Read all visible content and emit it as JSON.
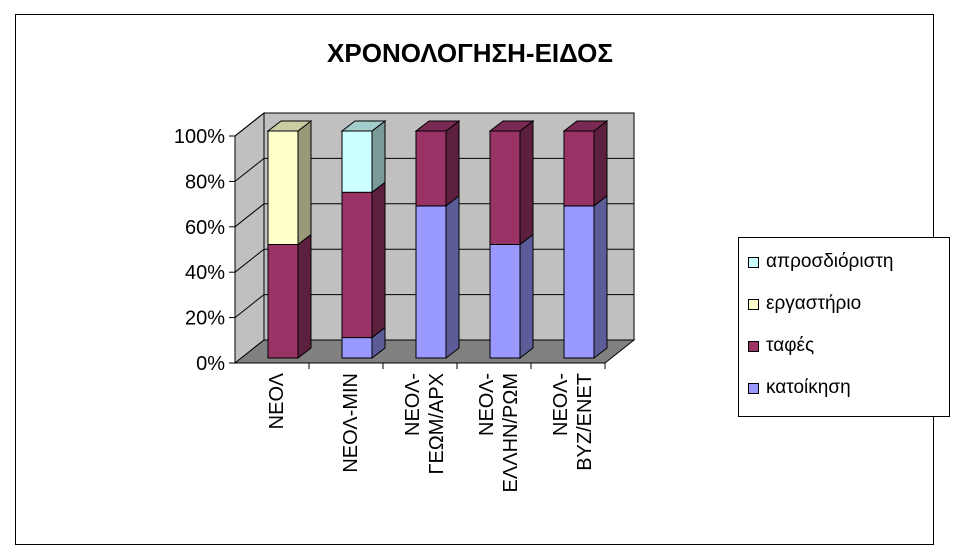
{
  "chart_data": {
    "type": "bar",
    "stacked": "percent",
    "three_d": true,
    "title": "ΧΡΟΝΟΛΟΓΗΣΗ-ΕΙΔΟΣ",
    "xlabel": "",
    "ylabel": "",
    "ylim": [
      0,
      100
    ],
    "y_ticks": [
      "0%",
      "20%",
      "40%",
      "60%",
      "80%",
      "100%"
    ],
    "grid": true,
    "legend_position": "right",
    "categories": [
      [
        "ΝΕΟΛ"
      ],
      [
        "ΝΕΟΛ-ΜΙΝ"
      ],
      [
        "ΝΕΟΛ-",
        "ΓΕΩΜ/ΑΡΧ"
      ],
      [
        "ΝΕΟΛ-",
        "ΕΛΛΗΝ/ΡΩΜ"
      ],
      [
        "ΝΕΟΛ-",
        "ΒΥΖ/ΕΝΕΤ"
      ]
    ],
    "series": [
      {
        "name": "κατοίκηση",
        "color": "#9999FF",
        "values": [
          0,
          9,
          67,
          50,
          67
        ]
      },
      {
        "name": "ταφές",
        "color": "#993366",
        "values": [
          50,
          64,
          33,
          50,
          33
        ]
      },
      {
        "name": "εργαστήριο",
        "color": "#FFFFCC",
        "values": [
          50,
          0,
          0,
          0,
          0
        ]
      },
      {
        "name": "απροσδιόριστη",
        "color": "#CCFFFF",
        "values": [
          0,
          27,
          0,
          0,
          0
        ]
      }
    ],
    "legend_order": [
      "απροσδιόριστη",
      "εργαστήριο",
      "ταφές",
      "κατοίκηση"
    ],
    "wall_color": "#C0C0C0",
    "floor_color": "#808080"
  }
}
